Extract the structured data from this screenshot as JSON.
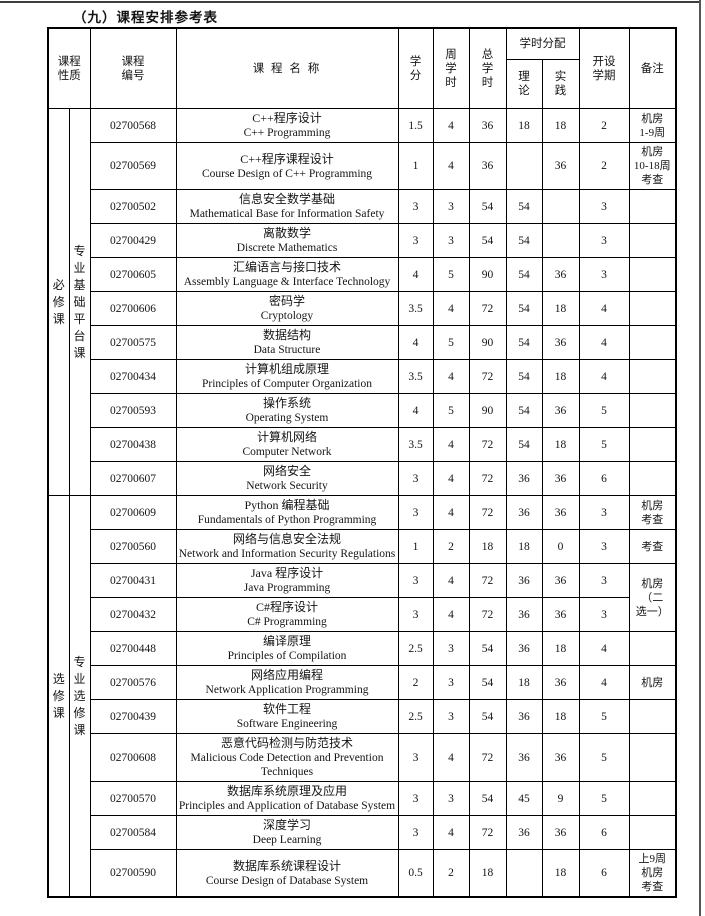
{
  "page": {
    "title": "（九）课程安排参考表"
  },
  "table": {
    "headers": {
      "nature": "课程\n性质",
      "code": "课程\n编号",
      "name": "课 程 名 称",
      "credits": "学\n分",
      "weekly_hours": "周\n学\n时",
      "total_hours": "总\n学\n时",
      "hour_allocation": "学时分配",
      "theory": "理\n论",
      "practice": "实\n践",
      "semester": "开设\n学期",
      "note": "备注"
    },
    "sections": [
      {
        "nature": "必修课",
        "category": "专业基础平台课",
        "rows": [
          {
            "code": "02700568",
            "name_zh": "C++程序设计",
            "name_en": "C++ Programming",
            "credits": "1.5",
            "weekly": "4",
            "total": "36",
            "theory": "18",
            "practice": "18",
            "semester": "2",
            "note": "机房\n1-9周"
          },
          {
            "code": "02700569",
            "name_zh": "C++程序课程设计",
            "name_en": "Course Design of C++ Programming",
            "credits": "1",
            "weekly": "4",
            "total": "36",
            "theory": "",
            "practice": "36",
            "semester": "2",
            "note": "机房\n10-18周\n考查"
          },
          {
            "code": "02700502",
            "name_zh": "信息安全数学基础",
            "name_en": "Mathematical Base for Information Safety",
            "credits": "3",
            "weekly": "3",
            "total": "54",
            "theory": "54",
            "practice": "",
            "semester": "3",
            "note": ""
          },
          {
            "code": "02700429",
            "name_zh": "离散数学",
            "name_en": "Discrete Mathematics",
            "credits": "3",
            "weekly": "3",
            "total": "54",
            "theory": "54",
            "practice": "",
            "semester": "3",
            "note": ""
          },
          {
            "code": "02700605",
            "name_zh": "汇编语言与接口技术",
            "name_en": "Assembly Language & Interface Technology",
            "credits": "4",
            "weekly": "5",
            "total": "90",
            "theory": "54",
            "practice": "36",
            "semester": "3",
            "note": ""
          },
          {
            "code": "02700606",
            "name_zh": "密码学",
            "name_en": "Cryptology",
            "credits": "3.5",
            "weekly": "4",
            "total": "72",
            "theory": "54",
            "practice": "18",
            "semester": "4",
            "note": ""
          },
          {
            "code": "02700575",
            "name_zh": "数据结构",
            "name_en": "Data Structure",
            "credits": "4",
            "weekly": "5",
            "total": "90",
            "theory": "54",
            "practice": "36",
            "semester": "4",
            "note": ""
          },
          {
            "code": "02700434",
            "name_zh": "计算机组成原理",
            "name_en": "Principles of Computer Organization",
            "credits": "3.5",
            "weekly": "4",
            "total": "72",
            "theory": "54",
            "practice": "18",
            "semester": "4",
            "note": ""
          },
          {
            "code": "02700593",
            "name_zh": "操作系统",
            "name_en": "Operating System",
            "credits": "4",
            "weekly": "5",
            "total": "90",
            "theory": "54",
            "practice": "36",
            "semester": "5",
            "note": ""
          },
          {
            "code": "02700438",
            "name_zh": "计算机网络",
            "name_en": "Computer Network",
            "credits": "3.5",
            "weekly": "4",
            "total": "72",
            "theory": "54",
            "practice": "18",
            "semester": "5",
            "note": ""
          },
          {
            "code": "02700607",
            "name_zh": "网络安全",
            "name_en": "Network Security",
            "credits": "3",
            "weekly": "4",
            "total": "72",
            "theory": "36",
            "practice": "36",
            "semester": "6",
            "note": ""
          }
        ]
      },
      {
        "nature": "选修课",
        "category": "专业选修课",
        "rows": [
          {
            "code": "02700609",
            "name_zh": "Python 编程基础",
            "name_en": "Fundamentals of Python Programming",
            "credits": "3",
            "weekly": "4",
            "total": "72",
            "theory": "36",
            "practice": "36",
            "semester": "3",
            "note": "机房\n考查"
          },
          {
            "code": "02700560",
            "name_zh": "网络与信息安全法规",
            "name_en": "Network and Information Security Regulations",
            "credits": "1",
            "weekly": "2",
            "total": "18",
            "theory": "18",
            "practice": "0",
            "semester": "3",
            "note": "考查"
          },
          {
            "code": "02700431",
            "name_zh": "Java 程序设计",
            "name_en": "Java Programming",
            "credits": "3",
            "weekly": "4",
            "total": "72",
            "theory": "36",
            "practice": "36",
            "semester": "3",
            "note": "机房\n（二\n选一）",
            "note_rowspan": 2
          },
          {
            "code": "02700432",
            "name_zh": "C#程序设计",
            "name_en": "C# Programming",
            "credits": "3",
            "weekly": "4",
            "total": "72",
            "theory": "36",
            "practice": "36",
            "semester": "3",
            "note_skip": true
          },
          {
            "code": "02700448",
            "name_zh": "编译原理",
            "name_en": "Principles of Compilation",
            "credits": "2.5",
            "weekly": "3",
            "total": "54",
            "theory": "36",
            "practice": "18",
            "semester": "4",
            "note": ""
          },
          {
            "code": "02700576",
            "name_zh": "网络应用编程",
            "name_en": "Network Application Programming",
            "credits": "2",
            "weekly": "3",
            "total": "54",
            "theory": "18",
            "practice": "36",
            "semester": "4",
            "note": "机房"
          },
          {
            "code": "02700439",
            "name_zh": "软件工程",
            "name_en": "Software Engineering",
            "credits": "2.5",
            "weekly": "3",
            "total": "54",
            "theory": "36",
            "practice": "18",
            "semester": "5",
            "note": ""
          },
          {
            "code": "02700608",
            "name_zh": "恶意代码检测与防范技术",
            "name_en": "Malicious Code Detection and Prevention Techniques",
            "credits": "3",
            "weekly": "4",
            "total": "72",
            "theory": "36",
            "practice": "36",
            "semester": "5",
            "note": ""
          },
          {
            "code": "02700570",
            "name_zh": "数据库系统原理及应用",
            "name_en": "Principles and Application of Database System",
            "credits": "3",
            "weekly": "3",
            "total": "54",
            "theory": "45",
            "practice": "9",
            "semester": "5",
            "note": ""
          },
          {
            "code": "02700584",
            "name_zh": "深度学习",
            "name_en": "Deep Learning",
            "credits": "3",
            "weekly": "4",
            "total": "72",
            "theory": "36",
            "practice": "36",
            "semester": "6",
            "note": ""
          },
          {
            "code": "02700590",
            "name_zh": "数据库系统课程设计",
            "name_en": "Course Design of Database System",
            "credits": "0.5",
            "weekly": "2",
            "total": "18",
            "theory": "",
            "practice": "18",
            "semester": "6",
            "note": "上9周\n机房\n考查"
          }
        ]
      }
    ]
  }
}
